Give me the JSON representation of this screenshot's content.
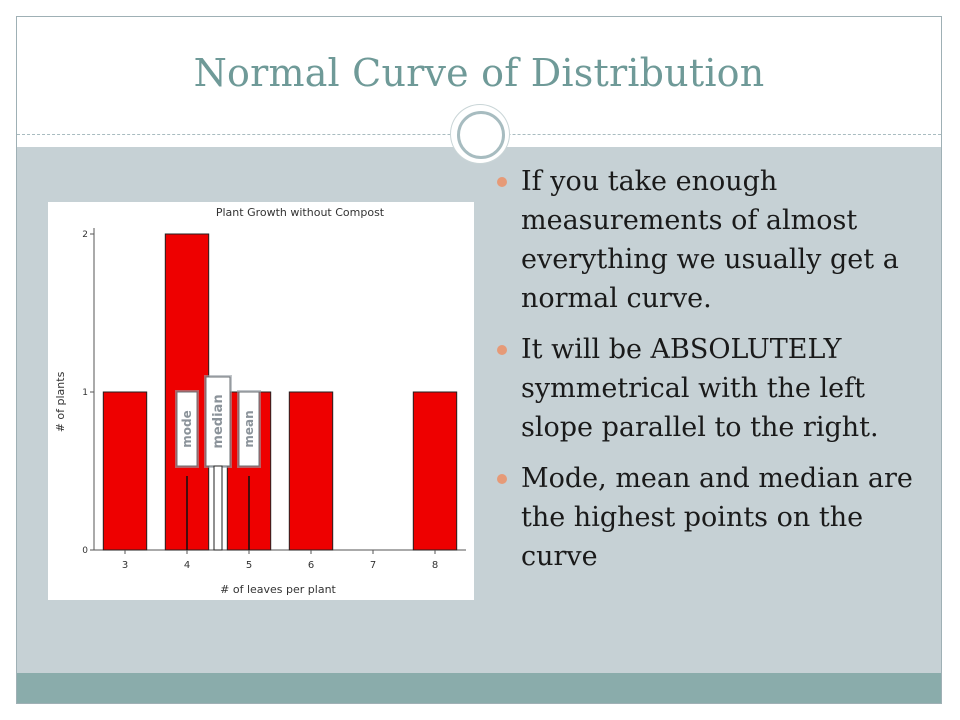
{
  "slide": {
    "title": "Normal Curve of Distribution",
    "bullets": [
      "If you take enough measurements of almost everything we usually get a normal curve.",
      "It will be ABSOLUTELY symmetrical with the left slope parallel to the right.",
      "Mode, mean and median are the highest points on the curve"
    ],
    "colors": {
      "title": "#6f9a98",
      "content_band": "#c6d1d5",
      "bottom_band": "#8aacab",
      "bullet": "#e69a77"
    }
  },
  "chart_data": {
    "type": "bar",
    "title": "Plant Growth without Compost",
    "xlabel": "# of leaves per plant",
    "ylabel": "# of plants",
    "x_ticks": [
      "3",
      "4",
      "5",
      "6",
      "7",
      "8"
    ],
    "y_ticks": [
      "0",
      "1",
      "2"
    ],
    "categories": [
      "3",
      "4",
      "5",
      "6",
      "7",
      "8"
    ],
    "values": [
      1,
      2,
      1,
      1,
      0,
      1
    ],
    "ylim": [
      0,
      2
    ],
    "grid": false,
    "bar_color": "#ee0000",
    "annotations": [
      {
        "label": "mode",
        "x": 4
      },
      {
        "label": "median",
        "x": 4.5
      },
      {
        "label": "mean",
        "x": 5
      }
    ]
  }
}
